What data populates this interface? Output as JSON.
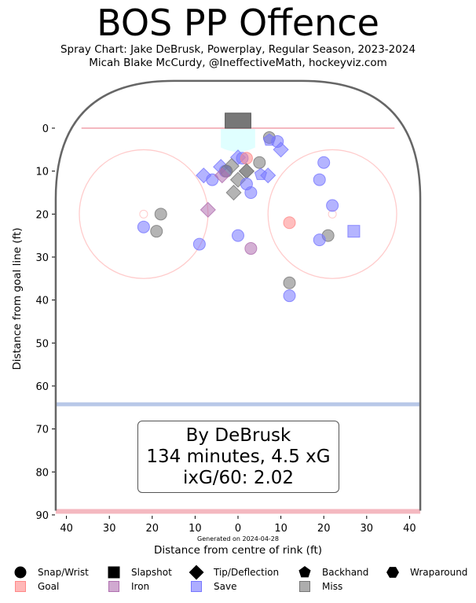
{
  "title": "BOS PP Offence",
  "subtitle1": "Spray Chart: Jake DeBrusk, Powerplay, Regular Season, 2023-2024",
  "subtitle2": "Micah Blake McCurdy, @IneffectiveMath, hockeyviz.com",
  "generated": "Generated on 2024-04-28",
  "summary": {
    "line1": "By DeBrusk",
    "line2": "134 minutes, 4.5 xG",
    "line3": "ixG/60: 2.02"
  },
  "colors": {
    "goal": "#ff8888",
    "iron": "#b070b0",
    "save": "#7777ff",
    "miss": "#777777",
    "rink_red": "#f4b8c0",
    "blue_line": "#b8c8e8",
    "crease": "#e0ffff"
  },
  "legend": {
    "shapes": [
      {
        "label": "Snap/Wrist",
        "icon": "circle"
      },
      {
        "label": "Slapshot",
        "icon": "square"
      },
      {
        "label": "Tip/Deflection",
        "icon": "diamond"
      },
      {
        "label": "Backhand",
        "icon": "pentagon"
      },
      {
        "label": "Wraparound",
        "icon": "hexagon"
      }
    ],
    "results": [
      {
        "label": "Goal",
        "key": "goal"
      },
      {
        "label": "Iron",
        "key": "iron"
      },
      {
        "label": "Save",
        "key": "save"
      },
      {
        "label": "Miss",
        "key": "miss"
      }
    ]
  },
  "chart_data": {
    "type": "scatter",
    "title": "BOS PP Offence",
    "xlabel": "Distance from centre of rink (ft)",
    "ylabel": "Distance from goal line (ft)",
    "xlim": [
      -42.5,
      42.5
    ],
    "ylim": [
      90,
      -11
    ],
    "xticks": [
      "40",
      "30",
      "20",
      "10",
      "0",
      "10",
      "20",
      "30",
      "40"
    ],
    "xtick_values": [
      -40,
      -30,
      -20,
      -10,
      0,
      10,
      20,
      30,
      40
    ],
    "yticks": [
      "0",
      "10",
      "20",
      "30",
      "40",
      "50",
      "60",
      "70",
      "80",
      "90"
    ],
    "ytick_values": [
      0,
      10,
      20,
      30,
      40,
      50,
      60,
      70,
      80,
      90
    ],
    "points": [
      {
        "x": 7.3,
        "y": 2.2,
        "shape": "circle",
        "result": "miss"
      },
      {
        "x": 7.3,
        "y": 2.8,
        "shape": "pentagon",
        "result": "save"
      },
      {
        "x": 9.2,
        "y": 3.1,
        "shape": "circle",
        "result": "save"
      },
      {
        "x": 10,
        "y": 5,
        "shape": "diamond",
        "result": "save"
      },
      {
        "x": 0,
        "y": 6.8,
        "shape": "diamond",
        "result": "save"
      },
      {
        "x": 1,
        "y": 7,
        "shape": "circle",
        "result": "save"
      },
      {
        "x": 2,
        "y": 7,
        "shape": "circle",
        "result": "goal"
      },
      {
        "x": 5,
        "y": 8,
        "shape": "circle",
        "result": "miss"
      },
      {
        "x": -4,
        "y": 9,
        "shape": "diamond",
        "result": "save"
      },
      {
        "x": -1.5,
        "y": 8.8,
        "shape": "diamond",
        "result": "miss"
      },
      {
        "x": -3,
        "y": 10,
        "shape": "circle",
        "result": "save"
      },
      {
        "x": -2.7,
        "y": 10,
        "shape": "circle",
        "result": "miss"
      },
      {
        "x": 2,
        "y": 10,
        "shape": "diamond",
        "result": "miss"
      },
      {
        "x": 2,
        "y": 10,
        "shape": "diamond",
        "result": "miss"
      },
      {
        "x": -8,
        "y": 11,
        "shape": "diamond",
        "result": "save"
      },
      {
        "x": -6,
        "y": 12,
        "shape": "circle",
        "result": "save"
      },
      {
        "x": -3.7,
        "y": 11,
        "shape": "diamond",
        "result": "iron"
      },
      {
        "x": 0,
        "y": 12,
        "shape": "diamond",
        "result": "miss"
      },
      {
        "x": 5.3,
        "y": 10.8,
        "shape": "pentagon",
        "result": "save"
      },
      {
        "x": 7,
        "y": 11,
        "shape": "diamond",
        "result": "save"
      },
      {
        "x": 2,
        "y": 13,
        "shape": "circle",
        "result": "save"
      },
      {
        "x": 3,
        "y": 15,
        "shape": "circle",
        "result": "save"
      },
      {
        "x": -1,
        "y": 15,
        "shape": "diamond",
        "result": "miss"
      },
      {
        "x": -7,
        "y": 19,
        "shape": "diamond",
        "result": "iron"
      },
      {
        "x": -18,
        "y": 20,
        "shape": "circle",
        "result": "miss"
      },
      {
        "x": -22,
        "y": 23,
        "shape": "circle",
        "result": "save"
      },
      {
        "x": -19,
        "y": 24,
        "shape": "circle",
        "result": "miss"
      },
      {
        "x": -9,
        "y": 27,
        "shape": "circle",
        "result": "save"
      },
      {
        "x": 0,
        "y": 25,
        "shape": "circle",
        "result": "save"
      },
      {
        "x": 3,
        "y": 28,
        "shape": "circle",
        "result": "iron"
      },
      {
        "x": 12,
        "y": 22,
        "shape": "circle",
        "result": "goal"
      },
      {
        "x": 20,
        "y": 8,
        "shape": "circle",
        "result": "save"
      },
      {
        "x": 19,
        "y": 12,
        "shape": "circle",
        "result": "save"
      },
      {
        "x": 22,
        "y": 18,
        "shape": "circle",
        "result": "save"
      },
      {
        "x": 21,
        "y": 25,
        "shape": "circle",
        "result": "miss"
      },
      {
        "x": 19,
        "y": 26,
        "shape": "circle",
        "result": "save"
      },
      {
        "x": 27,
        "y": 24,
        "shape": "square",
        "result": "save"
      },
      {
        "x": 12,
        "y": 36,
        "shape": "circle",
        "result": "miss"
      },
      {
        "x": 12,
        "y": 39,
        "shape": "circle",
        "result": "save"
      }
    ]
  }
}
